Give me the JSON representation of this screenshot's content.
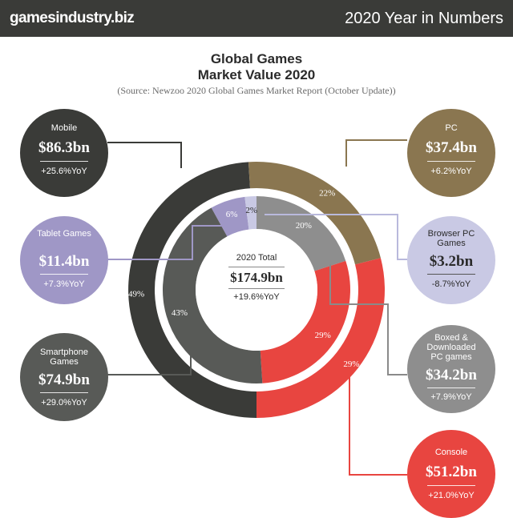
{
  "header": {
    "brand": "gamesindustry.biz",
    "year_title": "2020 Year in Numbers"
  },
  "title_line1": "Global Games",
  "title_line2": "Market Value 2020",
  "source": "(Source: Newzoo 2020 Global Games Market Report (October Update))",
  "center": {
    "label": "2020 Total",
    "value": "$174.9bn",
    "yoy": "+19.6%YoY"
  },
  "segments": {
    "mobile": {
      "label": "Mobile",
      "value": "$86.3bn",
      "yoy": "+25.6%YoY",
      "color": "#3a3b38"
    },
    "tablet": {
      "label": "Tablet Games",
      "value": "$11.4bn",
      "yoy": "+7.3%YoY",
      "color": "#9f97c6"
    },
    "smartphone": {
      "label": "Smartphone Games",
      "value": "$74.9bn",
      "yoy": "+29.0%YoY",
      "color": "#585a57"
    },
    "pc": {
      "label": "PC",
      "value": "$37.4bn",
      "yoy": "+6.2%YoY",
      "color": "#8a7650"
    },
    "browser": {
      "label": "Browser PC Games",
      "value": "$3.2bn",
      "yoy": "-8.7%YoY",
      "color": "#c9c9e4"
    },
    "boxed": {
      "label": "Boxed & Downloaded PC games",
      "value": "$34.2bn",
      "yoy": "+7.9%YoY",
      "color": "#8e8e8e"
    },
    "console": {
      "label": "Console",
      "value": "$51.2bn",
      "yoy": "+21.0%YoY",
      "color": "#e84540"
    }
  },
  "chart_data": {
    "type": "pie",
    "title": "Global Games Market Value 2020",
    "outer_ring": [
      {
        "name": "Mobile",
        "value": 49,
        "label": "49%",
        "color": "#3a3b38"
      },
      {
        "name": "PC",
        "value": 22,
        "label": "22%",
        "color": "#8a7650"
      },
      {
        "name": "Console",
        "value": 29,
        "label": "29%",
        "color": "#e84540"
      }
    ],
    "inner_ring": [
      {
        "name": "Tablet Games",
        "value": 6,
        "label": "6%",
        "color": "#9f97c6"
      },
      {
        "name": "Browser PC Games",
        "value": 2,
        "label": "2%",
        "color": "#c9c9e4"
      },
      {
        "name": "Boxed & Downloaded PC games",
        "value": 20,
        "label": "20%",
        "color": "#8e8e8e"
      },
      {
        "name": "Console",
        "value": 29,
        "label": "29%",
        "color": "#e84540"
      },
      {
        "name": "Smartphone Games",
        "value": 43,
        "label": "43%",
        "color": "#585a57"
      }
    ]
  }
}
